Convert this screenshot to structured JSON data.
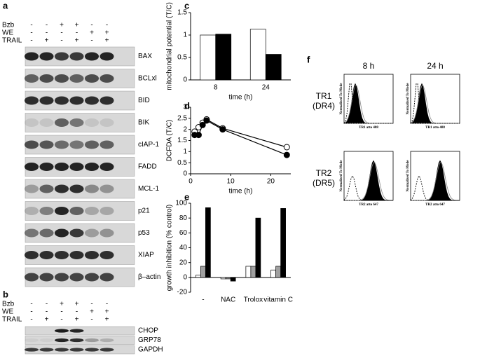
{
  "panel_a": {
    "letter": "a",
    "treatments": [
      {
        "name": "Bzb",
        "signs": [
          "-",
          "-",
          "+",
          "+",
          "-",
          "-"
        ]
      },
      {
        "name": "WE",
        "signs": [
          "-",
          "-",
          "-",
          "-",
          "+",
          "+"
        ]
      },
      {
        "name": "TRAIL",
        "signs": [
          "-",
          "+",
          "-",
          "+",
          "-",
          "+"
        ]
      }
    ],
    "blots": [
      "BAX",
      "BCLxl",
      "BID",
      "BIK",
      "cIAP-1",
      "FADD",
      "MCL-1",
      "p21",
      "p53",
      "XIAP",
      "β–actin"
    ]
  },
  "panel_b": {
    "letter": "b",
    "treatments": [
      {
        "name": "Bzb",
        "signs": [
          "-",
          "-",
          "+",
          "+",
          "-",
          "-"
        ]
      },
      {
        "name": "WE",
        "signs": [
          "-",
          "-",
          "-",
          "-",
          "+",
          "+"
        ]
      },
      {
        "name": "TRAIL",
        "signs": [
          "-",
          "+",
          "-",
          "+",
          "-",
          "+"
        ]
      }
    ],
    "blots": [
      "CHOP",
      "GRP78",
      "GAPDH"
    ]
  },
  "chart_data": [
    {
      "panel_label": "c",
      "type": "bar",
      "ylabel": "mitochondrial potential (T/C)",
      "xlabel": "time (h)",
      "categories": [
        "8",
        "24"
      ],
      "series": [
        {
          "color": "#ffffff",
          "values": [
            1.0,
            1.13
          ]
        },
        {
          "color": "#000000",
          "values": [
            1.02,
            0.57
          ]
        }
      ],
      "ylim": [
        0,
        1.5
      ],
      "yticks": [
        0,
        0.5,
        1,
        1.5
      ]
    },
    {
      "panel_label": "d",
      "type": "line",
      "ylabel": "DCFDA (T/C)",
      "xlabel": "time (h)",
      "x": [
        1,
        2,
        3,
        4,
        8,
        24
      ],
      "series": [
        {
          "color": "#ffffff",
          "values": [
            1.9,
            2.1,
            2.3,
            2.45,
            2.05,
            1.2
          ]
        },
        {
          "color": "#000000",
          "values": [
            1.75,
            1.75,
            2.2,
            2.4,
            2.0,
            0.85
          ]
        }
      ],
      "xlim": [
        0,
        25
      ],
      "xticks": [
        0,
        10,
        20
      ],
      "ylim": [
        0,
        3
      ],
      "yticks": [
        0,
        0.5,
        1,
        1.5,
        2,
        2.5,
        3
      ]
    },
    {
      "panel_label": "e",
      "type": "bar",
      "ylabel": "growth inhibition (% control)",
      "categories": [
        "-",
        "NAC",
        "Trolox",
        "vitamin C"
      ],
      "series": [
        {
          "color": "#ffffff",
          "values": [
            3,
            -2,
            15,
            10
          ]
        },
        {
          "color": "#a0a0a0",
          "values": [
            15,
            -2,
            15,
            15
          ]
        },
        {
          "color": "#000000",
          "values": [
            94,
            -5,
            80,
            93
          ]
        }
      ],
      "ylim": [
        -20,
        100
      ],
      "yticks": [
        -20,
        0,
        20,
        40,
        60,
        80,
        100
      ]
    }
  ],
  "panel_f": {
    "letter": "f",
    "columns": [
      "8 h",
      "24 h"
    ],
    "rows": [
      {
        "name": "TR1",
        "receptor": "(DR4)",
        "xlabel": "TR1 atto 488"
      },
      {
        "name": "TR2",
        "receptor": "(DR5)",
        "xlabel": "TR2 atto 647"
      }
    ],
    "ylabel": "Normalized To Mode"
  }
}
